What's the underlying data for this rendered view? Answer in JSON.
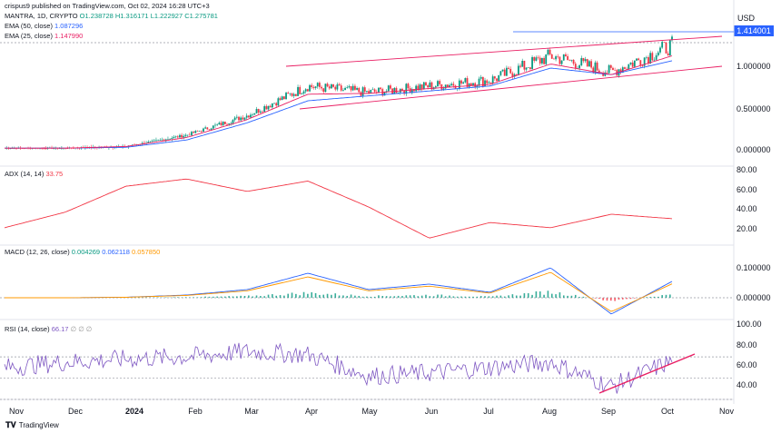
{
  "header": {
    "publisher": "crispus9 published on TradingView.com, Oct 02, 2024 16:28 UTC+3",
    "symbol": "MANTRA, 1D, CRYPTO",
    "o": "O1.238728",
    "h": "H1.316171",
    "l": "L1.222927",
    "c": "C1.275781",
    "ema50_label": "EMA (50, close)",
    "ema50_value": "1.087296",
    "ema25_label": "EMA (25, close)",
    "ema25_value": "1.147990"
  },
  "price_axis": {
    "currency": "USD",
    "last_price": "1.414001",
    "ticks": [
      "1.000000",
      "0.500000",
      "0.000000"
    ]
  },
  "adx": {
    "label": "ADX (14, 14)",
    "value": "33.75",
    "ticks": [
      "80.00",
      "60.00",
      "40.00",
      "20.00"
    ]
  },
  "macd": {
    "label": "MACD (12, 26, close)",
    "v1": "0.004269",
    "v2": "0.062118",
    "v3": "0.057850",
    "ticks": [
      "0.100000",
      "0.000000"
    ]
  },
  "rsi": {
    "label": "RSI (14, close)",
    "value": "66.17",
    "ticks": [
      "100.00",
      "80.00",
      "60.00",
      "40.00"
    ]
  },
  "x_axis": [
    "Nov",
    "Dec",
    "2024",
    "Feb",
    "Mar",
    "Apr",
    "May",
    "Jun",
    "Jul",
    "Aug",
    "Sep",
    "Oct",
    "Nov"
  ],
  "footer": {
    "brand": "TradingView"
  },
  "colors": {
    "up": "#089981",
    "down": "#f23645",
    "ema50": "#2962ff",
    "ema25": "#e91e63",
    "adx": "#f23645",
    "macd": "#2962ff",
    "signal": "#ff9800",
    "rsi": "#7e57c2",
    "channel": "#e91e63"
  },
  "chart_data": {
    "type": "line",
    "title": "MANTRA, 1D, CRYPTO",
    "x": [
      "Nov",
      "Dec",
      "2024",
      "Feb",
      "Mar",
      "Apr",
      "May",
      "Jun",
      "Jul",
      "Aug",
      "Sep",
      "Oct"
    ],
    "series": [
      {
        "name": "Price",
        "values": [
          0.02,
          0.02,
          0.04,
          0.18,
          0.42,
          0.78,
          0.7,
          0.78,
          0.85,
          1.15,
          0.95,
          1.28
        ]
      },
      {
        "name": "EMA (50, close)",
        "values": [
          0.02,
          0.02,
          0.03,
          0.12,
          0.33,
          0.6,
          0.66,
          0.72,
          0.78,
          1.0,
          0.92,
          1.09
        ]
      },
      {
        "name": "EMA (25, close)",
        "values": [
          0.02,
          0.02,
          0.04,
          0.15,
          0.37,
          0.68,
          0.69,
          0.75,
          0.8,
          1.05,
          0.92,
          1.15
        ]
      },
      {
        "name": "ADX (14, 14)",
        "values": [
          25,
          40,
          65,
          72,
          60,
          70,
          45,
          15,
          30,
          25,
          38,
          33.75
        ]
      },
      {
        "name": "RSI (14, close)",
        "values": [
          60,
          65,
          68,
          70,
          75,
          72,
          52,
          55,
          60,
          65,
          42,
          66.17
        ]
      }
    ],
    "ylim_price": [
      0,
      1.5
    ],
    "ylim_adx": [
      10,
      80
    ],
    "ylim_rsi": [
      30,
      100
    ]
  }
}
